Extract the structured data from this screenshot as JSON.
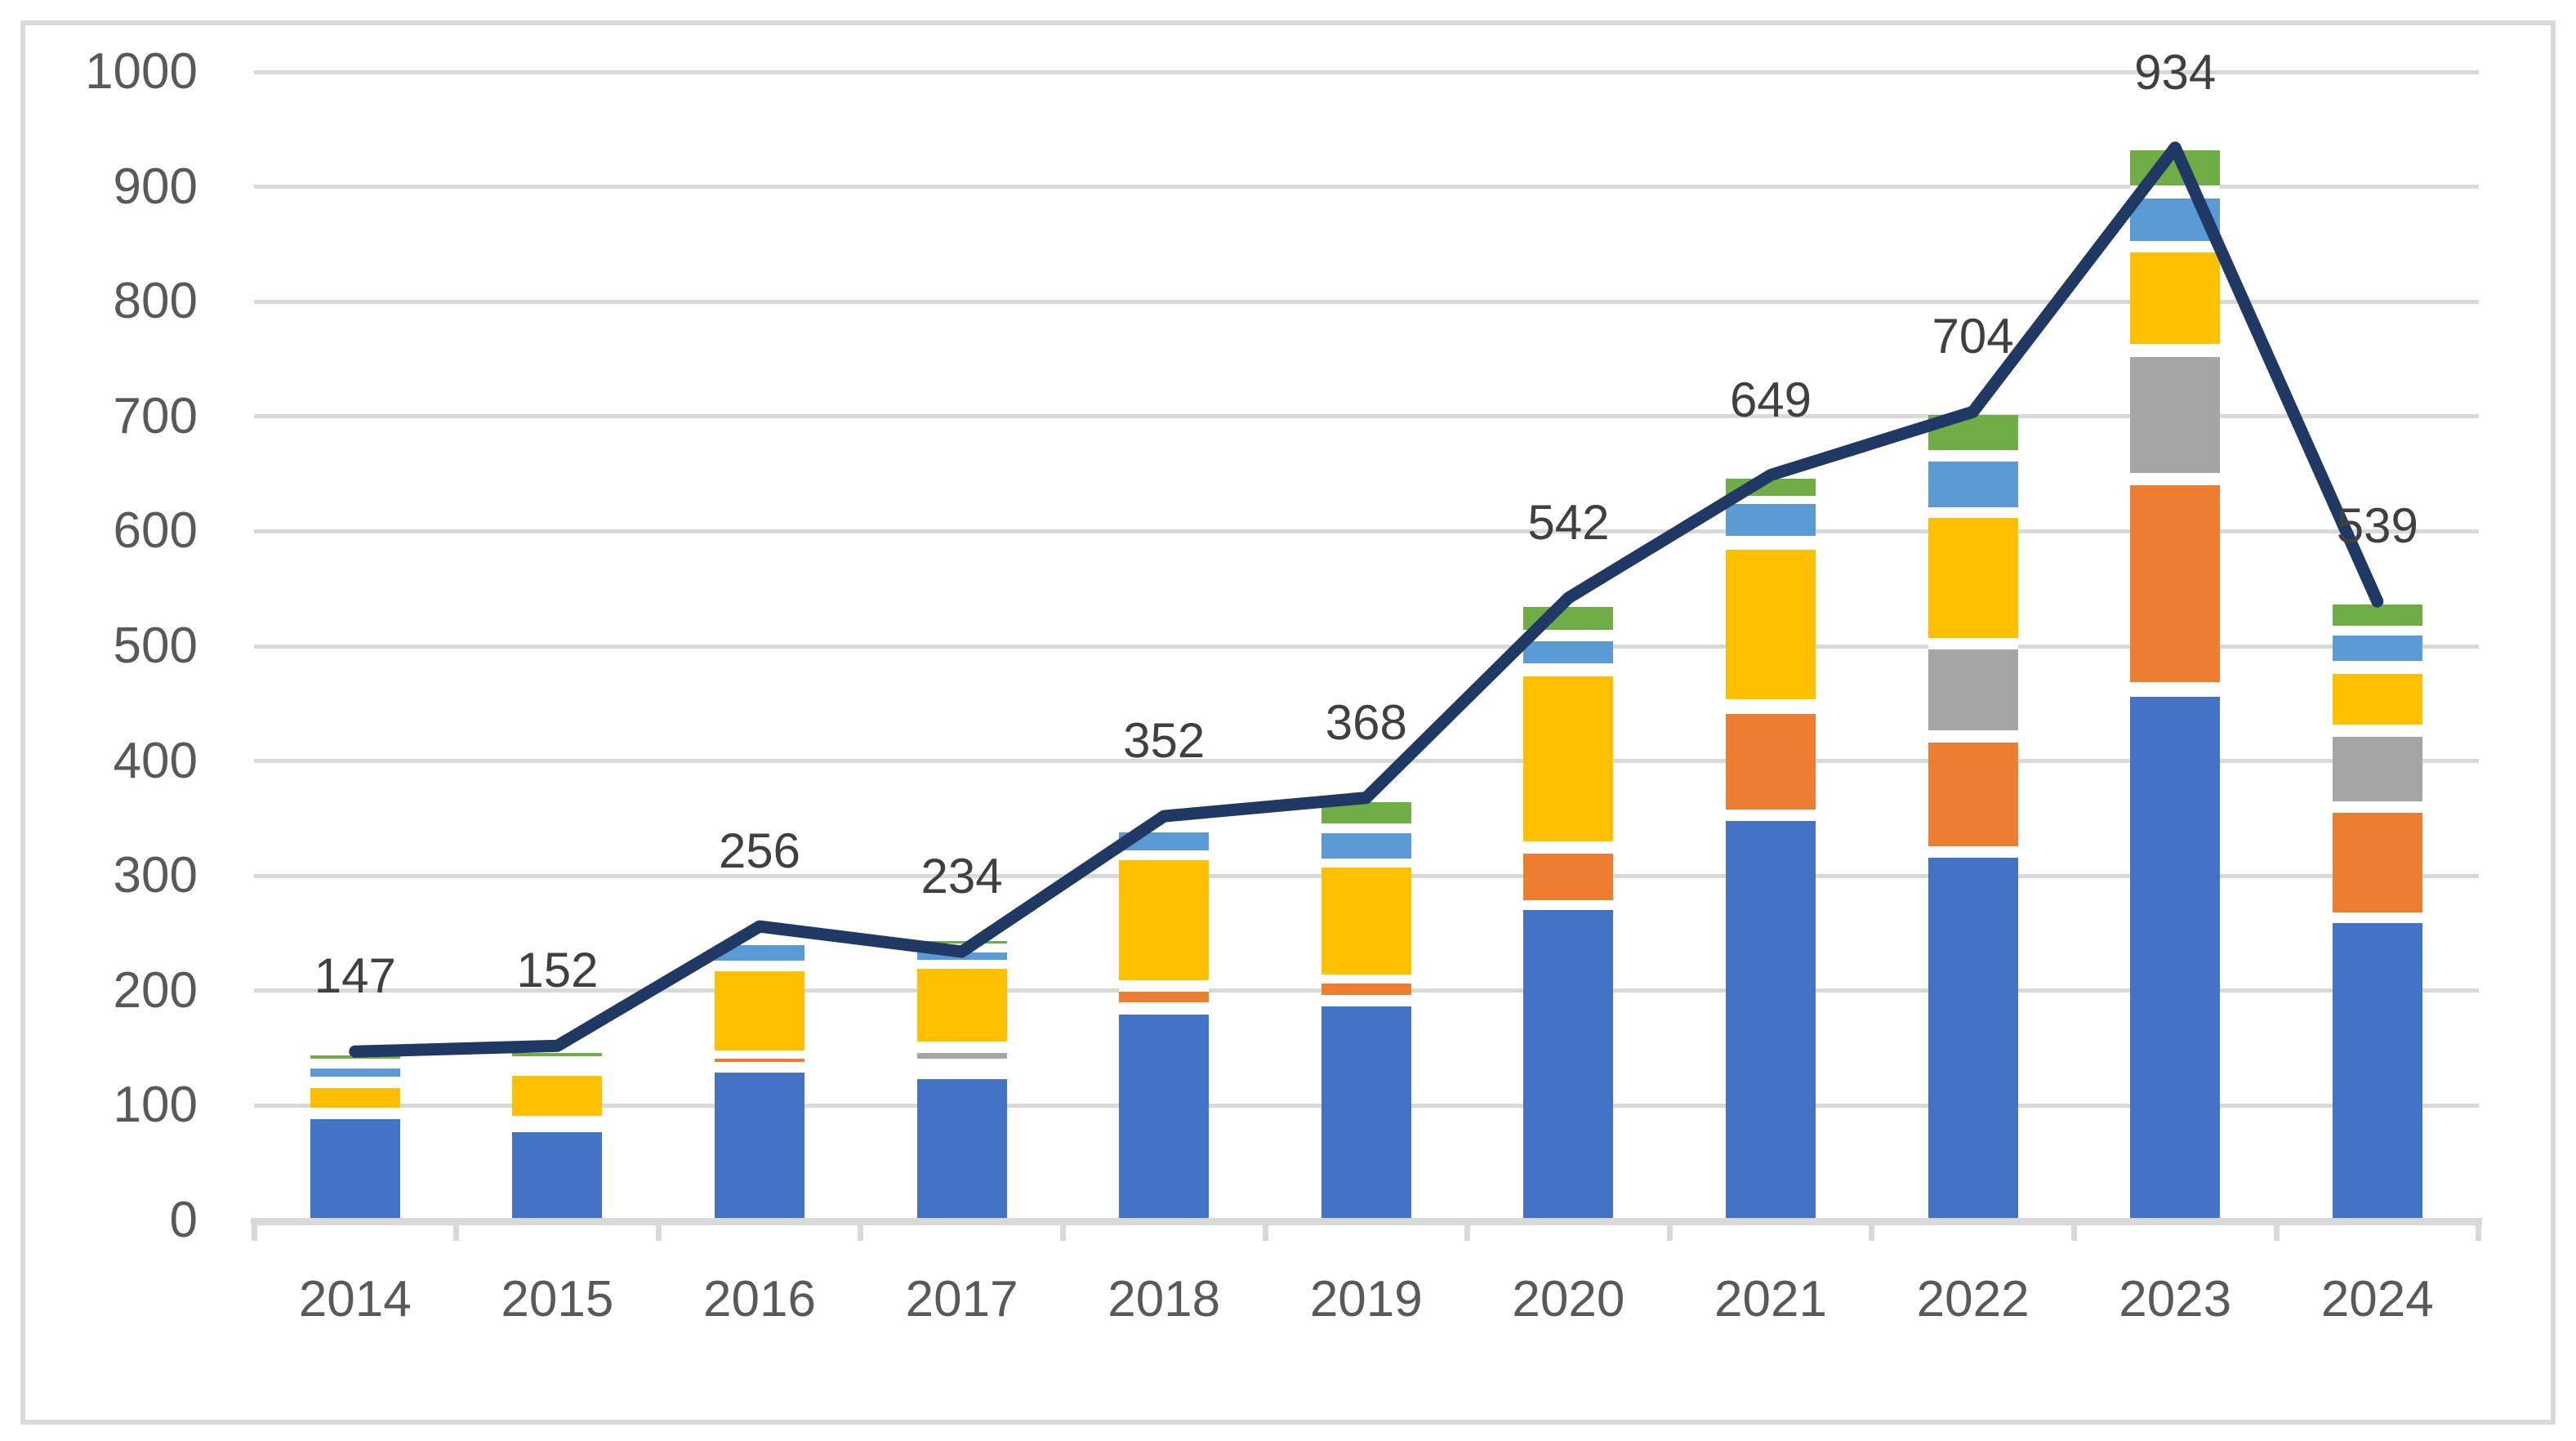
{
  "chart_data": {
    "type": "combo-stacked-bar-line",
    "title": "",
    "legend": "none",
    "categories": [
      "2014",
      "2015",
      "2016",
      "2017",
      "2018",
      "2019",
      "2020",
      "2021",
      "2022",
      "2023",
      "2024"
    ],
    "line_series": {
      "name": "total-line",
      "color": "#1F3864",
      "values": [
        147,
        152,
        256,
        234,
        352,
        368,
        542,
        649,
        704,
        934,
        539
      ]
    },
    "data_labels": [
      "147",
      "152",
      "256",
      "234",
      "352",
      "368",
      "542",
      "649",
      "704",
      "934",
      "539"
    ],
    "y_axis": {
      "min": 0,
      "max": 1000,
      "step": 100,
      "tick_labels": [
        "0",
        "100",
        "200",
        "300",
        "400",
        "500",
        "600",
        "700",
        "800",
        "900",
        "1000"
      ]
    },
    "x_axis": {
      "tick_marks": true
    },
    "grid": true,
    "series_colors": {
      "blue": "#4472C4",
      "orange": "#ED7D31",
      "gray": "#A5A5A5",
      "yellow": "#FFC000",
      "lightblue": "#5B9BD5",
      "green": "#70AD47"
    },
    "stacked_segments": [
      {
        "year": "2014",
        "segments": [
          {
            "c": "blue",
            "from": 0,
            "to": 88
          },
          {
            "c": "yellow",
            "from": 98,
            "to": 115
          },
          {
            "c": "lightblue",
            "from": 125,
            "to": 132
          },
          {
            "c": "green",
            "from": 141,
            "to": 143.5
          }
        ]
      },
      {
        "year": "2015",
        "segments": [
          {
            "c": "blue",
            "from": 0,
            "to": 77
          },
          {
            "c": "yellow",
            "from": 91,
            "to": 126
          },
          {
            "c": "green",
            "from": 143,
            "to": 146
          }
        ]
      },
      {
        "year": "2016",
        "segments": [
          {
            "c": "blue",
            "from": 0,
            "to": 129
          },
          {
            "c": "orange",
            "from": 138,
            "to": 141
          },
          {
            "c": "yellow",
            "from": 148,
            "to": 217
          },
          {
            "c": "lightblue",
            "from": 226,
            "to": 240
          }
        ]
      },
      {
        "year": "2017",
        "segments": [
          {
            "c": "blue",
            "from": 0,
            "to": 123
          },
          {
            "c": "gray",
            "from": 141,
            "to": 146
          },
          {
            "c": "yellow",
            "from": 156,
            "to": 219
          },
          {
            "c": "lightblue",
            "from": 227,
            "to": 233
          },
          {
            "c": "green",
            "from": 241,
            "to": 243.5
          }
        ]
      },
      {
        "year": "2018",
        "segments": [
          {
            "c": "blue",
            "from": 0,
            "to": 179
          },
          {
            "c": "orange",
            "from": 190,
            "to": 199
          },
          {
            "c": "yellow",
            "from": 209,
            "to": 314
          },
          {
            "c": "lightblue",
            "from": 322,
            "to": 338
          }
        ]
      },
      {
        "year": "2019",
        "segments": [
          {
            "c": "blue",
            "from": 0,
            "to": 186
          },
          {
            "c": "orange",
            "from": 196,
            "to": 206
          },
          {
            "c": "yellow",
            "from": 214,
            "to": 307
          },
          {
            "c": "lightblue",
            "from": 315,
            "to": 337
          },
          {
            "c": "green",
            "from": 346,
            "to": 364
          }
        ]
      },
      {
        "year": "2020",
        "segments": [
          {
            "c": "blue",
            "from": 0,
            "to": 270
          },
          {
            "c": "orange",
            "from": 279,
            "to": 319
          },
          {
            "c": "yellow",
            "from": 330,
            "to": 474
          },
          {
            "c": "lightblue",
            "from": 485,
            "to": 504
          },
          {
            "c": "green",
            "from": 514,
            "to": 534
          }
        ]
      },
      {
        "year": "2021",
        "segments": [
          {
            "c": "blue",
            "from": 0,
            "to": 348
          },
          {
            "c": "orange",
            "from": 358,
            "to": 441
          },
          {
            "c": "yellow",
            "from": 454,
            "to": 584
          },
          {
            "c": "lightblue",
            "from": 596,
            "to": 624
          },
          {
            "c": "green",
            "from": 631,
            "to": 646
          }
        ]
      },
      {
        "year": "2022",
        "segments": [
          {
            "c": "blue",
            "from": 0,
            "to": 316
          },
          {
            "c": "orange",
            "from": 326,
            "to": 416
          },
          {
            "c": "gray",
            "from": 427,
            "to": 497
          },
          {
            "c": "yellow",
            "from": 507,
            "to": 612
          },
          {
            "c": "lightblue",
            "from": 621,
            "to": 661
          },
          {
            "c": "green",
            "from": 671,
            "to": 701
          }
        ]
      },
      {
        "year": "2023",
        "segments": [
          {
            "c": "blue",
            "from": 0,
            "to": 456
          },
          {
            "c": "orange",
            "from": 469,
            "to": 640
          },
          {
            "c": "gray",
            "from": 651,
            "to": 752
          },
          {
            "c": "yellow",
            "from": 763,
            "to": 843
          },
          {
            "c": "lightblue",
            "from": 853,
            "to": 890
          },
          {
            "c": "green",
            "from": 901,
            "to": 932
          }
        ]
      },
      {
        "year": "2024",
        "segments": [
          {
            "c": "blue",
            "from": 0,
            "to": 259
          },
          {
            "c": "orange",
            "from": 268,
            "to": 355
          },
          {
            "c": "gray",
            "from": 365,
            "to": 421
          },
          {
            "c": "yellow",
            "from": 432,
            "to": 476
          },
          {
            "c": "lightblue",
            "from": 487,
            "to": 509
          },
          {
            "c": "green",
            "from": 518,
            "to": 536
          }
        ]
      }
    ],
    "colors": {
      "grid": "#D9D9D9",
      "axis_text": "#595959",
      "label_text": "#404040",
      "background": "#FFFFFF",
      "frame_border": "#D9D9D9"
    }
  }
}
